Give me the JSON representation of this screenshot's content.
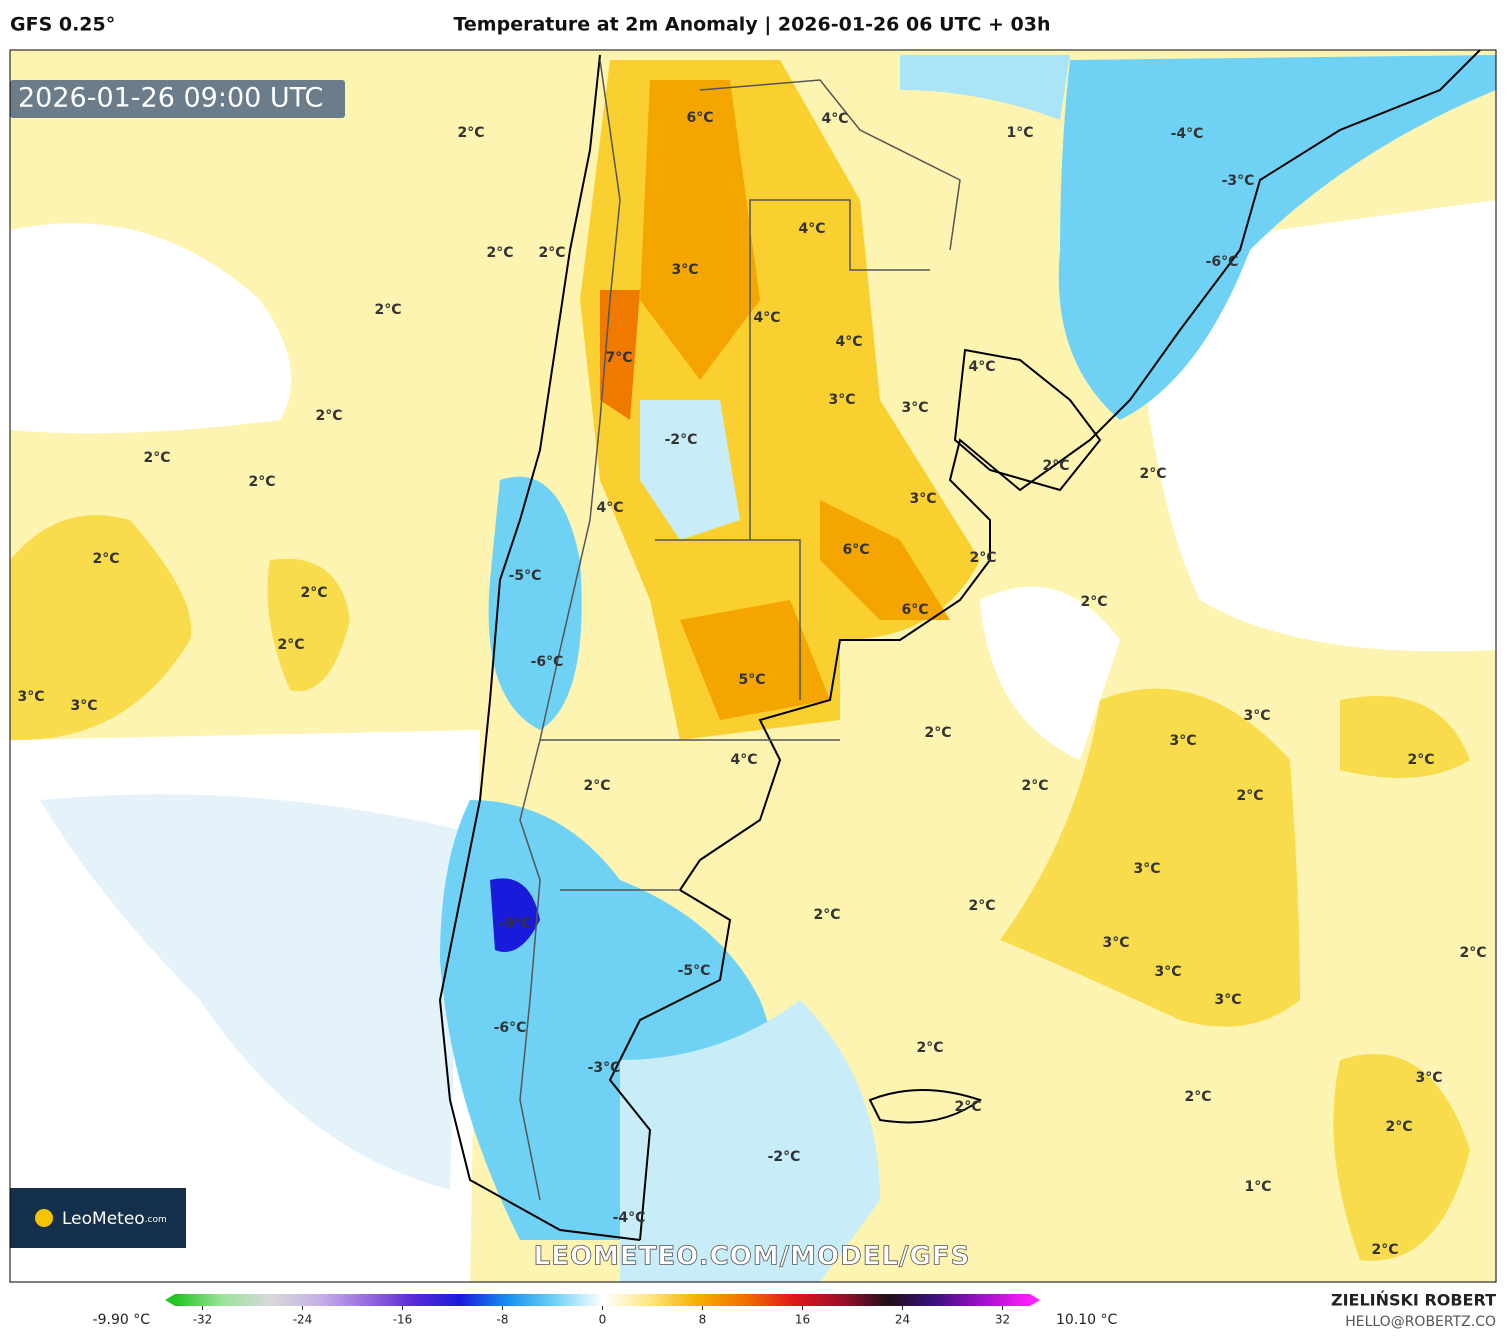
{
  "header": {
    "model": "GFS 0.25°",
    "title": "Temperature at 2m Anomaly | 2026-01-26 06 UTC + 03h"
  },
  "timestamp": "2026-01-26 09:00 UTC",
  "contour_labels": [
    "6°C",
    "4°C",
    "1°C",
    "-4°C",
    "-3°C",
    "2°C",
    "2°C",
    "2°C",
    "3°C",
    "4°C",
    "-6°C",
    "2°C",
    "4°C",
    "4°C",
    "4°C",
    "7°C",
    "3°C",
    "3°C",
    "2°C",
    "-2°C",
    "2°C",
    "2°C",
    "2°C",
    "2°C",
    "3°C",
    "4°C",
    "6°C",
    "2°C",
    "2°C",
    "-5°C",
    "2°C",
    "6°C",
    "2°C",
    "2°C",
    "-6°C",
    "5°C",
    "3°C",
    "3°C",
    "3°C",
    "2°C",
    "3°C",
    "2°C",
    "4°C",
    "2°C",
    "2°C",
    "2°C",
    "3°C",
    "2°C",
    "2°C",
    "-9°C",
    "3°C",
    "2°C",
    "-5°C",
    "3°C",
    "3°C",
    "-6°C",
    "2°C",
    "-3°C",
    "3°C",
    "2°C",
    "2°C",
    "2°C",
    "-2°C",
    "1°C",
    "-4°C",
    "2°C"
  ],
  "logo": {
    "name": "LeoMeteo",
    "suffix": ".com"
  },
  "watermark": "LEOMETEO.COM/MODEL/GFS",
  "colorbar": {
    "min_label": "-9.90 °C",
    "max_label": "10.10 °C",
    "lim": [
      -35,
      35
    ],
    "ticks": [
      -32,
      -24,
      -16,
      -8,
      0,
      8,
      16,
      24,
      32
    ],
    "colors": [
      "#22c522",
      "#9be39b",
      "#d8d8d8",
      "#c7b3e6",
      "#9a6fe0",
      "#5a2bd6",
      "#1a1adb",
      "#1590f0",
      "#6fd2f5",
      "#ffffff",
      "#ffe680",
      "#f5b000",
      "#f07000",
      "#e01818",
      "#a0102a",
      "#201018",
      "#3a1080",
      "#a010c8",
      "#ff20ff"
    ]
  },
  "credits": {
    "author": "ZIELIŃSKI ROBERT",
    "contact": "HELLO@ROBERTZ.CO"
  }
}
